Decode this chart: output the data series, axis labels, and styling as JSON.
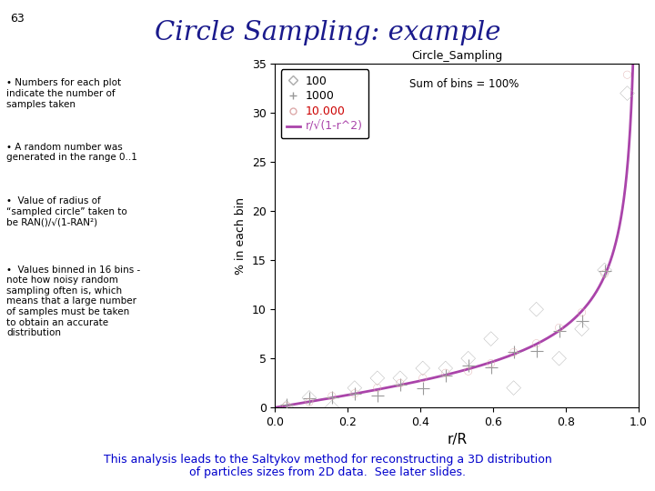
{
  "title": "Circle Sampling: example",
  "slide_number": "63",
  "plot_title": "Circle_Sampling",
  "xlabel": "r/R",
  "ylabel": "% in each bin",
  "annotation": "Sum of bins = 100%",
  "xlim": [
    0,
    1.0
  ],
  "ylim": [
    0,
    35
  ],
  "yticks": [
    0,
    5,
    10,
    15,
    20,
    25,
    30,
    35
  ],
  "xticks": [
    0,
    0.2,
    0.4,
    0.6,
    0.8,
    1.0
  ],
  "n_bins": 16,
  "n_samples": [
    100,
    1000,
    10000
  ],
  "colors": {
    "title": "#1a1a8c",
    "slide_number": "#000000",
    "plot_scatter_100": "#aaaaaa",
    "plot_scatter_1000": "#999999",
    "plot_scatter_10000": "#ddaaaa",
    "plot_line": "#aa44aa",
    "bottom_text": "#0000cc",
    "legend_10000": "#cc0000"
  },
  "bottom_text": "This analysis leads to the Saltykov method for reconstructing a 3D distribution\nof particles sizes from 2D data.  See later slides.",
  "left_bullets": [
    "• Numbers for each plot\nindicate the number of\nsamples taken",
    "• A random number was\ngenerated in the range 0..1",
    "•  Value of radius of\n“sampled circle” taken to\nbe RAN()/√(1-RAN²)",
    "•  Values binned in 16 bins -\nnote how noisy random\nsampling often is, which\nmeans that a large number\nof samples must be taken\nto obtain an accurate\ndistribution"
  ]
}
